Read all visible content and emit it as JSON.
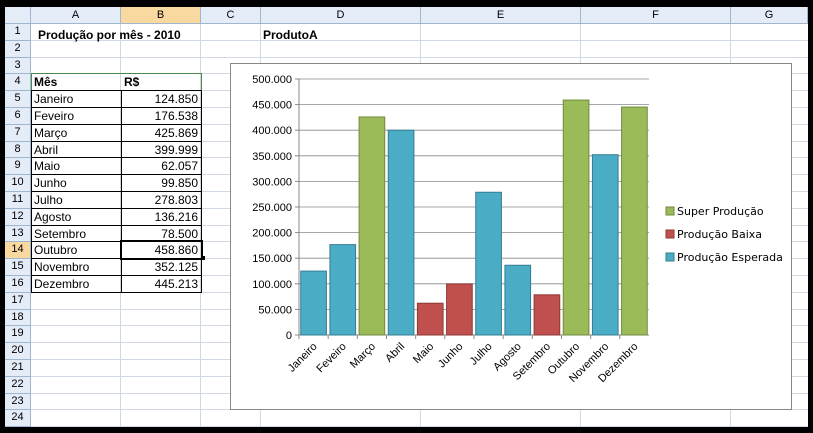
{
  "sheet": {
    "columns": [
      "A",
      "B",
      "C",
      "D",
      "E",
      "F",
      "G"
    ],
    "rows": [
      "1",
      "2",
      "3",
      "4",
      "5",
      "6",
      "7",
      "8",
      "9",
      "10",
      "11",
      "12",
      "13",
      "14",
      "15",
      "16",
      "17",
      "18",
      "19",
      "20",
      "21",
      "22",
      "23",
      "24"
    ],
    "selected_column": "B",
    "selected_row": "14",
    "title": "Produção por mês - 2010",
    "chart_label": "ProdutoA",
    "table": {
      "headers": [
        "Mês",
        "R$"
      ],
      "rows": [
        [
          "Janeiro",
          "124.850"
        ],
        [
          "Feveiro",
          "176.538"
        ],
        [
          "Março",
          "425.869"
        ],
        [
          "Abril",
          "399.999"
        ],
        [
          "Maio",
          "62.057"
        ],
        [
          "Junho",
          "99.850"
        ],
        [
          "Julho",
          "278.803"
        ],
        [
          "Agosto",
          "136.216"
        ],
        [
          "Setembro",
          "78.500"
        ],
        [
          "Outubro",
          "458.860"
        ],
        [
          "Novembro",
          "352.125"
        ],
        [
          "Dezembro",
          "445.213"
        ]
      ]
    }
  },
  "chart_data": {
    "type": "bar",
    "categories": [
      "Janeiro",
      "Feveiro",
      "Março",
      "Abril",
      "Maio",
      "Junho",
      "Julho",
      "Agosto",
      "Setembro",
      "Outubro",
      "Novembro",
      "Dezembro"
    ],
    "values": [
      124850,
      176538,
      425869,
      399999,
      62057,
      99850,
      278803,
      136216,
      78500,
      458860,
      352125,
      445213
    ],
    "point_series": [
      "Produção Esperada",
      "Produção Esperada",
      "Super Produção",
      "Produção Esperada",
      "Produção Baixa",
      "Produção Baixa",
      "Produção Esperada",
      "Produção Esperada",
      "Produção Baixa",
      "Super Produção",
      "Produção Esperada",
      "Super Produção"
    ],
    "series": [
      {
        "name": "Super Produção",
        "color": "#9bbb59",
        "stroke": "#71893f"
      },
      {
        "name": "Produção Baixa",
        "color": "#c0504d",
        "stroke": "#8c3836"
      },
      {
        "name": "Produção Esperada",
        "color": "#4bacc6",
        "stroke": "#357d91"
      }
    ],
    "yticks": [
      "0",
      "50.000",
      "100.000",
      "150.000",
      "200.000",
      "250.000",
      "300.000",
      "350.000",
      "400.000",
      "450.000",
      "500.000"
    ],
    "ylim": [
      0,
      500000
    ],
    "grid": true,
    "legend_position": "right"
  }
}
